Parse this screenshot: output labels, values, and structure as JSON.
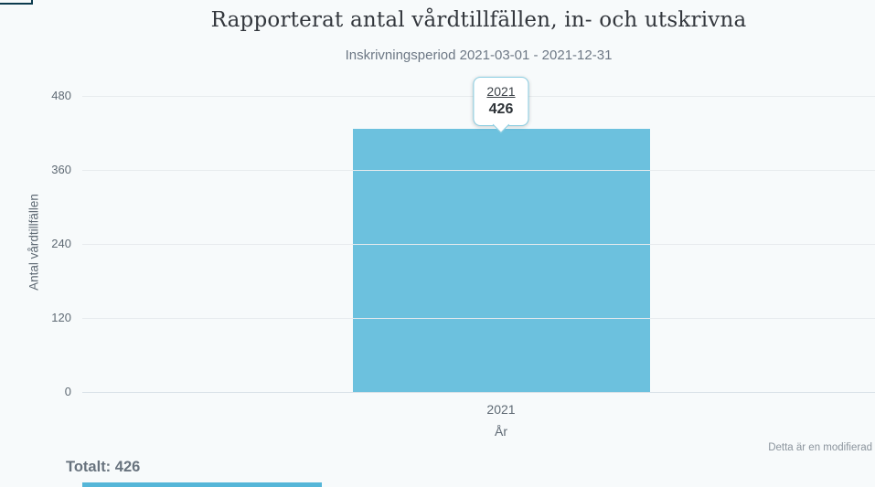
{
  "window": {
    "background": "#f7fafb"
  },
  "decor": {
    "corner_color": "#0c3b4e",
    "bottom_bar_color": "#55b6d8"
  },
  "chart_data": {
    "type": "bar",
    "title": "Rapporterat antal vårdtillfällen, in- och utskrivna",
    "subtitle": "Inskrivningsperiod 2021-03-01 - 2021-12-31",
    "categories": [
      "2021"
    ],
    "values": [
      426
    ],
    "xlabel": "År",
    "ylabel": "Antal vårdtillfällen",
    "ylim": [
      0,
      480
    ],
    "yticks": [
      0,
      120,
      240,
      360,
      480
    ],
    "bar_color": "#6cc1de",
    "grid": "horizontal gridlines only",
    "legend": "none"
  },
  "tooltip": {
    "label": "2021",
    "value": "426"
  },
  "footer": {
    "total": "Totalt: 426",
    "note": "Detta är en modifierad"
  }
}
